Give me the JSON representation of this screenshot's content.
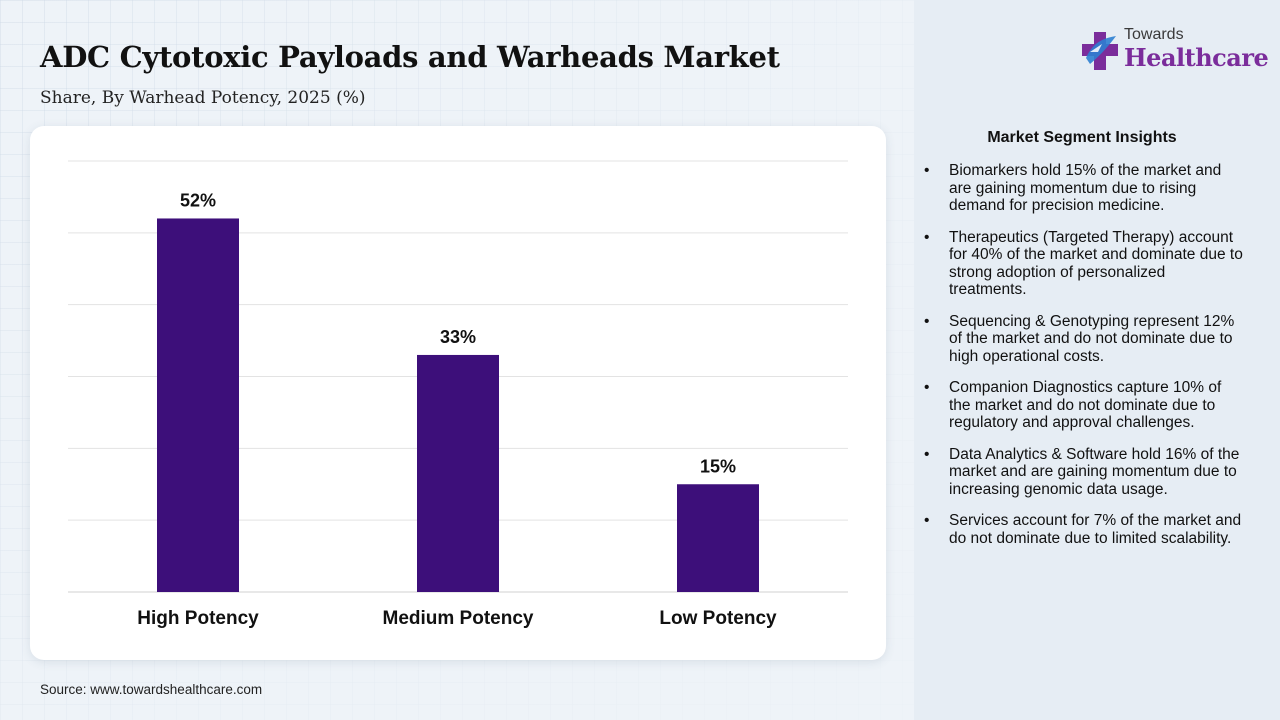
{
  "header": {
    "title": "ADC Cytotoxic Payloads and Warheads Market",
    "subtitle": "Share, By Warhead Potency, 2025 (%)"
  },
  "brand": {
    "small": "Towards",
    "big": "Healthcare",
    "colors": {
      "primary": "#7b2d9b",
      "accent": "#2e7fd1"
    }
  },
  "chart_data": {
    "type": "bar",
    "title": "",
    "xlabel": "",
    "ylabel": "",
    "categories": [
      "High Potency",
      "Medium Potency",
      "Low Potency"
    ],
    "values": [
      52,
      33,
      15
    ],
    "value_labels": [
      "52%",
      "33%",
      "15%"
    ],
    "ylim": [
      0,
      60
    ],
    "grid": true,
    "bar_color": "#3d0f7a"
  },
  "insights": {
    "title": "Market Segment Insights",
    "bullet": "•",
    "items": [
      "Biomarkers hold 15% of the market and are gaining momentum due to rising demand for precision medicine.",
      "Therapeutics (Targeted Therapy) account for 40% of the market and dominate due to strong adoption of personalized treatments.",
      "Sequencing & Genotyping represent 12% of the market and do not dominate due to high operational costs.",
      "Companion Diagnostics capture 10% of the market and do not dominate due to regulatory and approval challenges.",
      "Data Analytics & Software hold 16% of the market and are gaining momentum due to increasing genomic data usage.",
      "Services account for 7% of the market and do not dominate due to limited scalability."
    ]
  },
  "footer": {
    "source": "Source: www.towardshealthcare.com"
  }
}
